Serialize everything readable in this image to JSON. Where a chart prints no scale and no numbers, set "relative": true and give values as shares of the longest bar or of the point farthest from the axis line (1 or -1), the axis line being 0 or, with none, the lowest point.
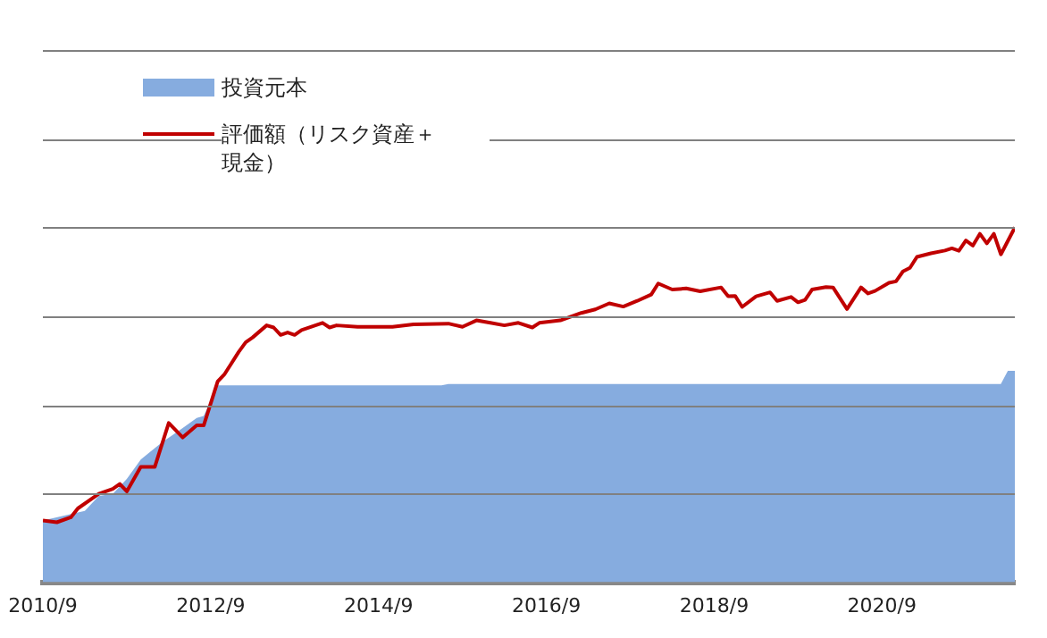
{
  "chart_data": {
    "type": "area",
    "relative": true,
    "grid": "y",
    "legend": "top left",
    "xlim": [
      "2010-09",
      "2022-04"
    ],
    "xticks": [
      {
        "value": "2010-09",
        "label": "2010/9"
      },
      {
        "value": "2012-09",
        "label": "2012/9"
      },
      {
        "value": "2014-09",
        "label": "2014/9"
      },
      {
        "value": "2016-09",
        "label": "2016/9"
      },
      {
        "value": "2018-09",
        "label": "2018/9"
      },
      {
        "value": "2020-09",
        "label": "2020/9"
      }
    ],
    "series": [
      {
        "name": "投資元本",
        "color": "#86acdf",
        "x": [
          "2010-09",
          "2011-03",
          "2011-05",
          "2011-07",
          "2011-09",
          "2011-11",
          "2012-02",
          "2012-05",
          "2012-07",
          "2012-08",
          "2012-10",
          "2015-06",
          "2015-07",
          "2022-02",
          "2022-03",
          "2022-04"
        ],
        "values": [
          0.174,
          0.201,
          0.243,
          0.249,
          0.291,
          0.346,
          0.394,
          0.435,
          0.463,
          0.469,
          0.555,
          0.555,
          0.559,
          0.559,
          0.596,
          0.596
        ]
      },
      {
        "name": "評価額（リスク資産＋現金）",
        "type": "line",
        "color": "#c00000",
        "x": [
          "2010-09",
          "2010-11",
          "2011-01",
          "2011-02",
          "2011-05",
          "2011-07",
          "2011-08",
          "2011-09",
          "2011-11",
          "2012-01",
          "2012-03",
          "2012-05",
          "2012-07",
          "2012-08",
          "2012-10",
          "2012-11",
          "2013-01",
          "2013-02",
          "2013-03",
          "2013-05",
          "2013-06",
          "2013-07",
          "2013-08",
          "2013-09",
          "2013-10",
          "2014-01",
          "2014-02",
          "2014-03",
          "2014-06",
          "2014-11",
          "2015-02",
          "2015-07",
          "2015-09",
          "2015-11",
          "2016-01",
          "2016-03",
          "2016-05",
          "2016-07",
          "2016-08",
          "2016-11",
          "2017-02",
          "2017-04",
          "2017-06",
          "2017-08",
          "2017-10",
          "2017-12",
          "2018-01",
          "2018-03",
          "2018-05",
          "2018-07",
          "2018-10",
          "2018-11",
          "2018-12",
          "2019-01",
          "2019-03",
          "2019-05",
          "2019-06",
          "2019-08",
          "2019-09",
          "2019-10",
          "2019-11",
          "2020-01",
          "2020-02",
          "2020-04",
          "2020-06",
          "2020-07",
          "2020-08",
          "2020-10",
          "2020-11",
          "2020-12",
          "2021-01",
          "2021-02",
          "2021-04",
          "2021-06",
          "2021-07",
          "2021-08",
          "2021-09",
          "2021-10",
          "2021-11",
          "2021-12",
          "2022-01",
          "2022-02",
          "2022-04"
        ],
        "values": [
          0.174,
          0.169,
          0.183,
          0.208,
          0.249,
          0.263,
          0.277,
          0.256,
          0.325,
          0.325,
          0.449,
          0.408,
          0.442,
          0.442,
          0.566,
          0.587,
          0.649,
          0.676,
          0.69,
          0.724,
          0.718,
          0.697,
          0.704,
          0.697,
          0.711,
          0.731,
          0.718,
          0.724,
          0.72,
          0.72,
          0.727,
          0.729,
          0.72,
          0.738,
          0.731,
          0.724,
          0.731,
          0.718,
          0.731,
          0.738,
          0.759,
          0.769,
          0.786,
          0.777,
          0.793,
          0.811,
          0.842,
          0.825,
          0.828,
          0.82,
          0.831,
          0.806,
          0.807,
          0.776,
          0.806,
          0.817,
          0.793,
          0.804,
          0.789,
          0.796,
          0.825,
          0.832,
          0.831,
          0.77,
          0.831,
          0.814,
          0.821,
          0.844,
          0.848,
          0.876,
          0.886,
          0.917,
          0.927,
          0.935,
          0.941,
          0.934,
          0.963,
          0.949,
          0.982,
          0.955,
          0.982,
          0.924,
          1
        ]
      }
    ]
  }
}
